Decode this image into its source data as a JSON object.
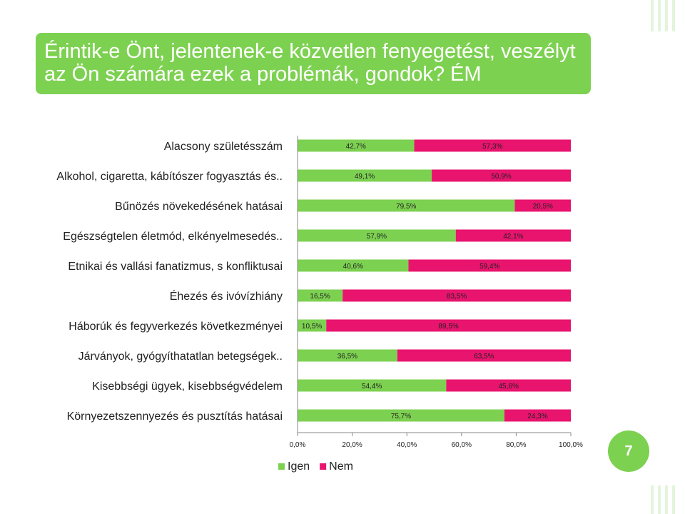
{
  "title": "Érintik-e Önt, jelentenek-e közvetlen fenyegetést, veszélyt az Ön számára ezek a problémák, gondok? ÉM",
  "page_number": "7",
  "colors": {
    "igen": "#7dd151",
    "nem": "#e8146e",
    "banner": "#7dd151",
    "accent_light": "#e3f4dd"
  },
  "chart_data": {
    "type": "bar",
    "orientation": "horizontal",
    "stacked": true,
    "categories": [
      "Alacsony születésszám",
      "Alkohol, cigaretta, kábítószer fogyasztás és..",
      "Bűnözés növekedésének hatásai",
      "Egészségtelen életmód, elkényelmesedés..",
      "Etnikai és vallási fanatizmus, s konfliktusai",
      "Éhezés és ivóvízhiány",
      "Háborúk és fegyverkezés következményei",
      "Járványok, gyógyíthatatlan betegségek..",
      "Kisebbségi ügyek, kisebbségvédelem",
      "Környezetszennyezés és pusztítás hatásai"
    ],
    "series": [
      {
        "name": "Igen",
        "values": [
          42.7,
          49.1,
          79.5,
          57.9,
          40.6,
          16.5,
          10.5,
          36.5,
          54.4,
          75.7
        ]
      },
      {
        "name": "Nem",
        "values": [
          57.3,
          50.9,
          20.5,
          42.1,
          59.4,
          83.5,
          89.5,
          63.5,
          45.6,
          24.3
        ]
      }
    ],
    "data_labels": [
      [
        "42,7%",
        "57,3%"
      ],
      [
        "49,1%",
        "50,9%"
      ],
      [
        "79,5%",
        "20,5%"
      ],
      [
        "57,9%",
        "42,1%"
      ],
      [
        "40,6%",
        "59,4%"
      ],
      [
        "16,5%",
        "83,5%"
      ],
      [
        "10,5%",
        "89,5%"
      ],
      [
        "36,5%",
        "63,5%"
      ],
      [
        "54,4%",
        "45,6%"
      ],
      [
        "75,7%",
        "24,3%"
      ]
    ],
    "x_ticks": [
      0,
      20,
      40,
      60,
      80,
      100
    ],
    "x_tick_labels": [
      "0,0%",
      "20,0%",
      "40,0%",
      "60,0%",
      "80,0%",
      "100,0%"
    ],
    "xlim": [
      0,
      100
    ],
    "legend": {
      "position": "bottom",
      "entries": [
        "Igen",
        "Nem"
      ]
    },
    "grid": false
  }
}
